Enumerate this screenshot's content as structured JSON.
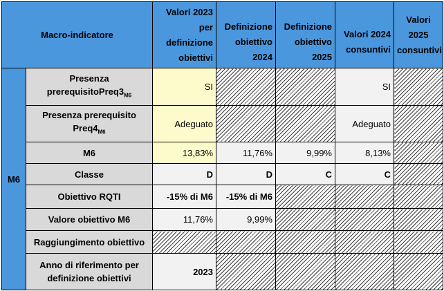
{
  "header": {
    "macro": "Macro-indicatore",
    "col1": "Valori 2023 per definizione obiettivi",
    "col2": "Definizione obiettivo 2024",
    "col3": "Definizione obiettivo 2025",
    "col4": "Valori 2024 consuntivi",
    "col5": "Valori 2025 consuntivi"
  },
  "group_label": "M6",
  "rows": [
    {
      "label_main": "Presenza prerequisitoPreq3",
      "label_sub": "M6",
      "v1": "SI",
      "v4": "SI"
    },
    {
      "label_main": "Presenza prerequisito Preq4",
      "label_sub": "M6",
      "v1": "Adeguato",
      "v4": "Adeguato"
    },
    {
      "label": "M6",
      "v1": "13,83%",
      "v2": "11,76%",
      "v3": "9,99%",
      "v4": "8,13%"
    },
    {
      "label": "Classe",
      "v1": "D",
      "v2": "D",
      "v3": "C",
      "v4": "C"
    },
    {
      "label": "Obiettivo RQTI",
      "v1": "-15% di M6",
      "v2": "-15% di M6"
    },
    {
      "label": "Valore obiettivo M6",
      "v1": "11,76%",
      "v2": "9,99%"
    },
    {
      "label": "Raggiungimento obiettivo"
    },
    {
      "label": "Anno di riferimento per definizione obiettivi",
      "v1": "2023"
    }
  ],
  "colors": {
    "header_blue": "#4a97dd",
    "label_grey": "#d9d9d9",
    "yellow_cell": "#fdfacb",
    "light_cell": "#f2f2f2"
  }
}
